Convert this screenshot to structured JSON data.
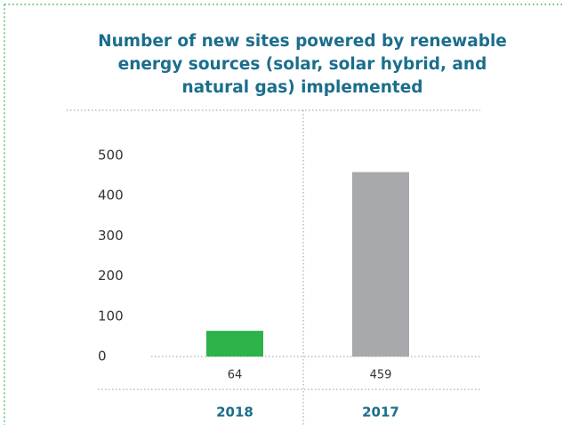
{
  "chart_data": {
    "type": "bar",
    "title": "Number of new sites powered by renewable energy sources (solar, solar hybrid, and natural gas) implemented",
    "categories": [
      "2018",
      "2017"
    ],
    "values": [
      64,
      459
    ],
    "colors": [
      "#2db34a",
      "#a7a9ac"
    ],
    "ylim": [
      0,
      500
    ],
    "yticks": [
      0,
      100,
      200,
      300,
      400,
      500
    ],
    "grid": false
  }
}
